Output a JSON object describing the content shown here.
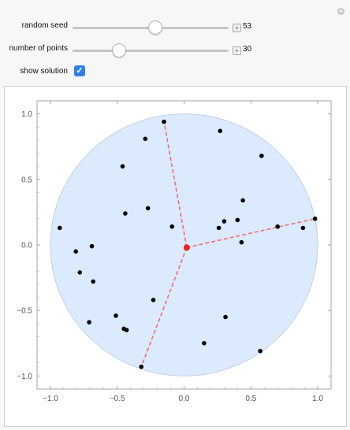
{
  "controls": {
    "random_seed": {
      "label": "random seed",
      "value": "53",
      "fraction": 0.53
    },
    "number_of_points": {
      "label": "number of points",
      "value": "30",
      "fraction": 0.3
    },
    "show_solution": {
      "label": "show solution",
      "checked": true
    }
  },
  "chart_data": {
    "type": "scatter",
    "title": "",
    "xlabel": "",
    "ylabel": "",
    "xlim": [
      -1.0,
      1.0
    ],
    "ylim": [
      -1.0,
      1.0
    ],
    "x_ticks": [
      "−1.0",
      "−0.5",
      "0.0",
      "0.5",
      "1.0"
    ],
    "y_ticks": [
      "1.0",
      "0.5",
      "0.0",
      "−0.5",
      "−1.0"
    ],
    "disk": {
      "center": [
        0.0,
        0.0
      ],
      "radius": 1.0,
      "fill": "#dbeafd"
    },
    "center_point": {
      "x": 0.02,
      "y": -0.02,
      "color": "#e8231a"
    },
    "solution_lines": [
      {
        "from": [
          0.02,
          -0.02
        ],
        "to": [
          -0.15,
          0.94
        ]
      },
      {
        "from": [
          0.02,
          -0.02
        ],
        "to": [
          0.98,
          0.2
        ]
      },
      {
        "from": [
          0.02,
          -0.02
        ],
        "to": [
          -0.32,
          -0.93
        ]
      }
    ],
    "line_color": "#f07070",
    "point_color": "#000000",
    "points": [
      {
        "x": -0.15,
        "y": 0.94
      },
      {
        "x": 0.27,
        "y": 0.87
      },
      {
        "x": -0.29,
        "y": 0.81
      },
      {
        "x": 0.58,
        "y": 0.68
      },
      {
        "x": -0.46,
        "y": 0.6
      },
      {
        "x": 0.44,
        "y": 0.34
      },
      {
        "x": -0.27,
        "y": 0.28
      },
      {
        "x": -0.44,
        "y": 0.24
      },
      {
        "x": 0.4,
        "y": 0.19
      },
      {
        "x": 0.98,
        "y": 0.2
      },
      {
        "x": 0.3,
        "y": 0.18
      },
      {
        "x": 0.7,
        "y": 0.14
      },
      {
        "x": -0.93,
        "y": 0.13
      },
      {
        "x": -0.09,
        "y": 0.14
      },
      {
        "x": 0.26,
        "y": 0.13
      },
      {
        "x": 0.89,
        "y": 0.13
      },
      {
        "x": 0.43,
        "y": 0.02
      },
      {
        "x": -0.69,
        "y": -0.01
      },
      {
        "x": -0.81,
        "y": -0.05
      },
      {
        "x": -0.78,
        "y": -0.21
      },
      {
        "x": -0.68,
        "y": -0.28
      },
      {
        "x": -0.23,
        "y": -0.42
      },
      {
        "x": -0.51,
        "y": -0.54
      },
      {
        "x": 0.31,
        "y": -0.55
      },
      {
        "x": -0.71,
        "y": -0.59
      },
      {
        "x": -0.45,
        "y": -0.64
      },
      {
        "x": -0.43,
        "y": -0.65
      },
      {
        "x": 0.15,
        "y": -0.75
      },
      {
        "x": 0.57,
        "y": -0.81
      },
      {
        "x": -0.32,
        "y": -0.93
      }
    ]
  }
}
